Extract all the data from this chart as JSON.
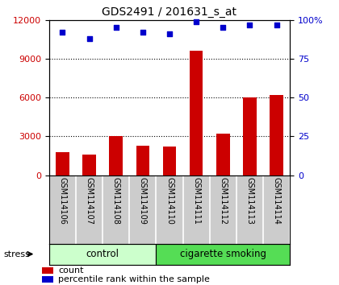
{
  "title": "GDS2491 / 201631_s_at",
  "categories": [
    "GSM114106",
    "GSM114107",
    "GSM114108",
    "GSM114109",
    "GSM114110",
    "GSM114111",
    "GSM114112",
    "GSM114113",
    "GSM114114"
  ],
  "bar_values": [
    1800,
    1600,
    3050,
    2300,
    2200,
    9600,
    3200,
    6000,
    6200
  ],
  "scatter_values": [
    92,
    88,
    95,
    92,
    91,
    99,
    95,
    97,
    97
  ],
  "bar_color": "#cc0000",
  "scatter_color": "#0000cc",
  "ylim_left": [
    0,
    12000
  ],
  "ylim_right": [
    0,
    100
  ],
  "yticks_left": [
    0,
    3000,
    6000,
    9000,
    12000
  ],
  "yticks_right": [
    0,
    25,
    50,
    75,
    100
  ],
  "yticklabels_right": [
    "0",
    "25",
    "50",
    "75",
    "100%"
  ],
  "control_group_count": 4,
  "smoking_group_count": 5,
  "control_label": "control",
  "smoking_label": "cigarette smoking",
  "stress_label": "stress",
  "legend_count": "count",
  "legend_percentile": "percentile rank within the sample",
  "control_color": "#ccffcc",
  "smoking_color": "#55dd55",
  "tick_area_color": "#cccccc",
  "bar_width": 0.5
}
